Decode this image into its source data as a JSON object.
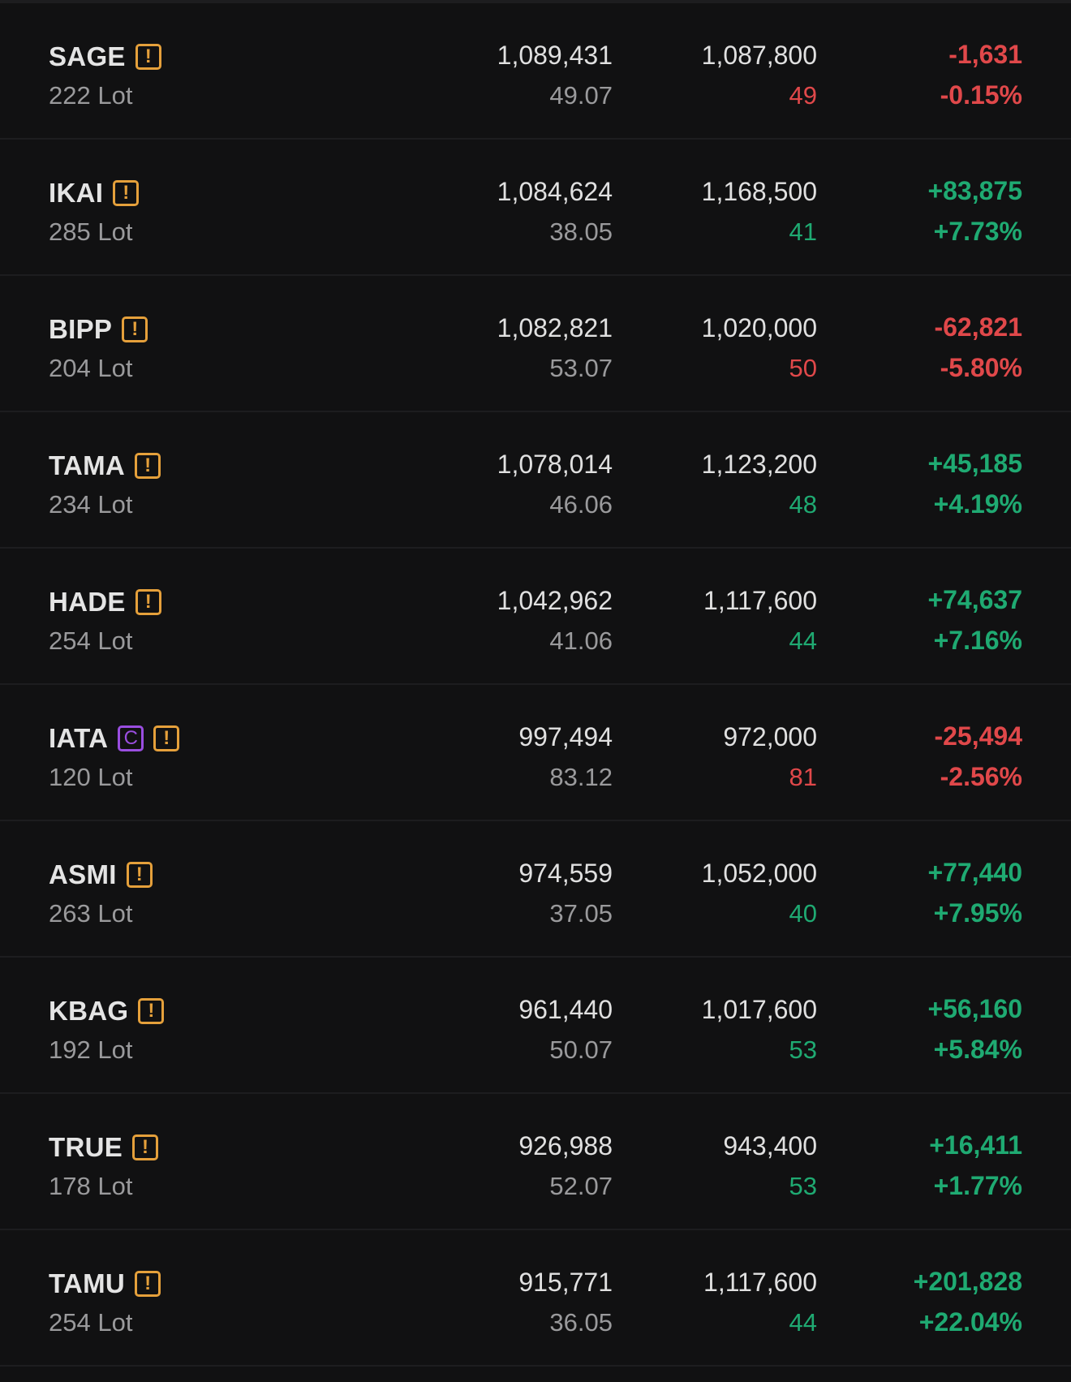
{
  "colors": {
    "background": "#111112",
    "positive": "#1faa72",
    "negative": "#e0484a",
    "warning_badge": "#e5a03b",
    "c_badge": "#9a4ee0"
  },
  "rows": [
    {
      "ticker": "SAGE",
      "badges": [
        "warning-icon"
      ],
      "lot": "222 Lot",
      "value": "1,089,431",
      "avg": "49.07",
      "market_value": "1,087,800",
      "price": "49",
      "price_trend": "neg",
      "pl": "-1,631",
      "pl_pct": "-0.15%",
      "trend": "neg"
    },
    {
      "ticker": "IKAI",
      "badges": [
        "warning-icon"
      ],
      "lot": "285 Lot",
      "value": "1,084,624",
      "avg": "38.05",
      "market_value": "1,168,500",
      "price": "41",
      "price_trend": "pos",
      "pl": "+83,875",
      "pl_pct": "+7.73%",
      "trend": "pos"
    },
    {
      "ticker": "BIPP",
      "badges": [
        "warning-icon"
      ],
      "lot": "204 Lot",
      "value": "1,082,821",
      "avg": "53.07",
      "market_value": "1,020,000",
      "price": "50",
      "price_trend": "neg",
      "pl": "-62,821",
      "pl_pct": "-5.80%",
      "trend": "neg"
    },
    {
      "ticker": "TAMA",
      "badges": [
        "warning-icon"
      ],
      "lot": "234 Lot",
      "value": "1,078,014",
      "avg": "46.06",
      "market_value": "1,123,200",
      "price": "48",
      "price_trend": "pos",
      "pl": "+45,185",
      "pl_pct": "+4.19%",
      "trend": "pos"
    },
    {
      "ticker": "HADE",
      "badges": [
        "warning-icon"
      ],
      "lot": "254 Lot",
      "value": "1,042,962",
      "avg": "41.06",
      "market_value": "1,117,600",
      "price": "44",
      "price_trend": "pos",
      "pl": "+74,637",
      "pl_pct": "+7.16%",
      "trend": "pos"
    },
    {
      "ticker": "IATA",
      "badges": [
        "c-icon",
        "warning-icon"
      ],
      "badge_c_text": "C",
      "lot": "120 Lot",
      "value": "997,494",
      "avg": "83.12",
      "market_value": "972,000",
      "price": "81",
      "price_trend": "neg",
      "pl": "-25,494",
      "pl_pct": "-2.56%",
      "trend": "neg"
    },
    {
      "ticker": "ASMI",
      "badges": [
        "warning-icon"
      ],
      "lot": "263 Lot",
      "value": "974,559",
      "avg": "37.05",
      "market_value": "1,052,000",
      "price": "40",
      "price_trend": "pos",
      "pl": "+77,440",
      "pl_pct": "+7.95%",
      "trend": "pos"
    },
    {
      "ticker": "KBAG",
      "badges": [
        "warning-icon"
      ],
      "lot": "192 Lot",
      "value": "961,440",
      "avg": "50.07",
      "market_value": "1,017,600",
      "price": "53",
      "price_trend": "pos",
      "pl": "+56,160",
      "pl_pct": "+5.84%",
      "trend": "pos"
    },
    {
      "ticker": "TRUE",
      "badges": [
        "warning-icon"
      ],
      "lot": "178 Lot",
      "value": "926,988",
      "avg": "52.07",
      "market_value": "943,400",
      "price": "53",
      "price_trend": "pos",
      "pl": "+16,411",
      "pl_pct": "+1.77%",
      "trend": "pos"
    },
    {
      "ticker": "TAMU",
      "badges": [
        "warning-icon"
      ],
      "lot": "254 Lot",
      "value": "915,771",
      "avg": "36.05",
      "market_value": "1,117,600",
      "price": "44",
      "price_trend": "pos",
      "pl": "+201,828",
      "pl_pct": "+22.04%",
      "trend": "pos"
    }
  ]
}
